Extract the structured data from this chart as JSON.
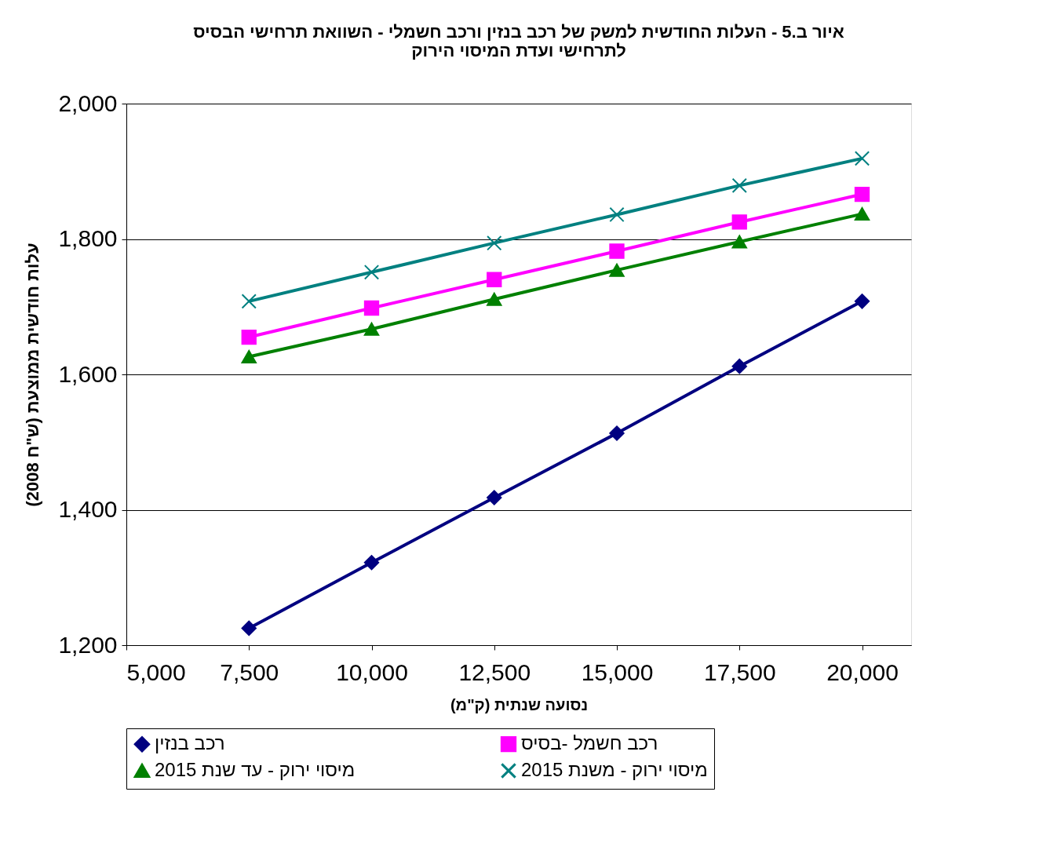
{
  "chart_data": {
    "type": "line",
    "title": [
      "איור ב.5 - העלות החודשית למשק של רכב בנזין ורכב חשמלי - השוואת תרחישי הבסיס",
      "לתרחישי ועדת המיסוי הירוק"
    ],
    "xlabel": "נסועה שנתית (ק\"מ)",
    "ylabel": "עלות חודשית ממוצעת (ש\"ח 2008)",
    "x": [
      7500,
      10000,
      12500,
      15000,
      17500,
      20000
    ],
    "series": [
      {
        "name": "רכב בנזין",
        "color": "#000080",
        "marker": "diamond",
        "values": [
          1225,
          1322,
          1418,
          1513,
          1612,
          1708
        ]
      },
      {
        "name": "רכב חשמל -בסיס",
        "color": "#ff00ff",
        "marker": "square",
        "values": [
          1655,
          1698,
          1740,
          1782,
          1825,
          1866
        ]
      },
      {
        "name": "מיסוי ירוק - עד שנת 2015",
        "color": "#008000",
        "marker": "triangle",
        "values": [
          1626,
          1667,
          1711,
          1754,
          1796,
          1837
        ]
      },
      {
        "name": "מיסוי ירוק - משנת 2015",
        "color": "#008080",
        "marker": "cross",
        "values": [
          1708,
          1751,
          1794,
          1836,
          1879,
          1919
        ]
      }
    ],
    "xlim": [
      5000,
      21000
    ],
    "xticks": [
      {
        "value": 5000,
        "label": "5,000"
      },
      {
        "value": 7500,
        "label": "7,500"
      },
      {
        "value": 10000,
        "label": "10,000"
      },
      {
        "value": 12500,
        "label": "12,500"
      },
      {
        "value": 15000,
        "label": "15,000"
      },
      {
        "value": 17500,
        "label": "17,500"
      },
      {
        "value": 20000,
        "label": "20,000"
      }
    ],
    "ylim": [
      1200,
      2000
    ],
    "yticks": [
      {
        "value": 1200,
        "label": "1,200"
      },
      {
        "value": 1400,
        "label": "1,400"
      },
      {
        "value": 1600,
        "label": "1,600"
      },
      {
        "value": 1800,
        "label": "1,800"
      },
      {
        "value": 2000,
        "label": "2,000"
      }
    ],
    "grid": "y",
    "legend": "bottom",
    "line_style": "solid"
  }
}
